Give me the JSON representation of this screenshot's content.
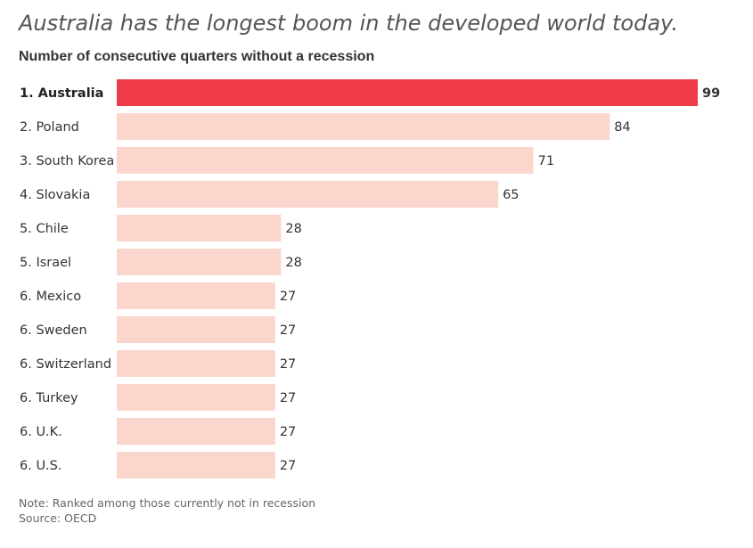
{
  "chart_data": {
    "type": "bar",
    "orientation": "horizontal",
    "title": "Australia has the longest boom in the developed world today.",
    "subtitle": "Number of consecutive quarters without a recession",
    "categories": [
      "1. Australia",
      "2. Poland",
      "3. South Korea",
      "4. Slovakia",
      "5. Chile",
      "5. Israel",
      "6. Mexico",
      "6. Sweden",
      "6. Switzerland",
      "6. Turkey",
      "6. U.K.",
      "6. U.S."
    ],
    "values": [
      99,
      84,
      71,
      65,
      28,
      28,
      27,
      27,
      27,
      27,
      27,
      27
    ],
    "highlight_index": 0,
    "xlim": [
      0,
      99
    ],
    "grid": false,
    "xlabel": "",
    "ylabel": ""
  },
  "colors": {
    "highlight": "#ef3b47",
    "bar": "#fbd6cc"
  },
  "notes": {
    "note": "Note: Ranked among those currently not in recession",
    "source": "Source: OECD"
  }
}
